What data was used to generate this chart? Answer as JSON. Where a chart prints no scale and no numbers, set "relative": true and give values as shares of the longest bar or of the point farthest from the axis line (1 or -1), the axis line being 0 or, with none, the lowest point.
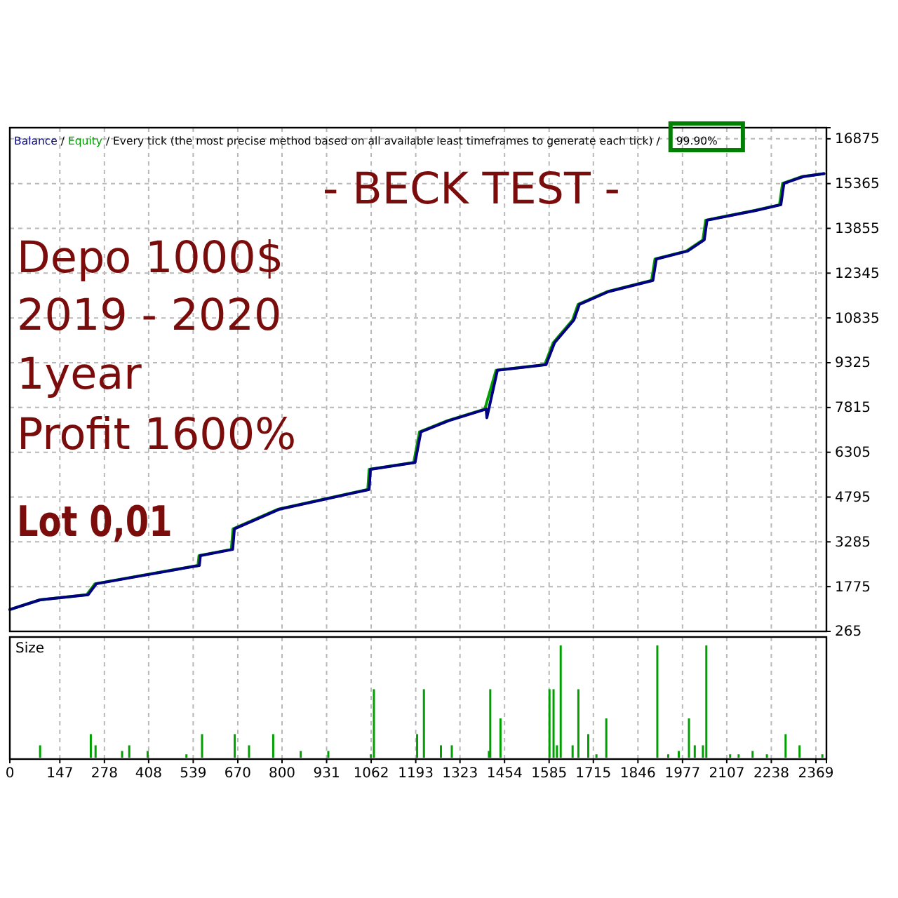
{
  "chart_data": [
    {
      "type": "line",
      "subtitle": "Every tick (the most precise method based on all available least timeframes to generate each tick)",
      "annotations": [
        "/",
        "/",
        "/",
        "99.90%",
        "- BECK TEST -",
        "Depo 1000$",
        "2019 - 2020",
        "1year",
        "Profit 1600%",
        "Lot 0,01"
      ],
      "xlim": [
        0,
        2400
      ],
      "ylim": [
        265,
        17250
      ],
      "xticks": [
        0,
        147,
        278,
        408,
        539,
        670,
        800,
        931,
        1062,
        1193,
        1323,
        1454,
        1585,
        1715,
        1846,
        1977,
        2107,
        2238,
        2369
      ],
      "yticks": [
        265,
        1775,
        3285,
        4795,
        6305,
        7815,
        9325,
        10835,
        12345,
        13855,
        15365,
        16875
      ],
      "tick_labels": "y",
      "grid": true,
      "legend": "top left",
      "series": [
        {
          "name": "Equity",
          "color": "#00a000",
          "x": [
            0,
            89,
            226,
            250,
            553,
            556,
            651,
            656,
            787,
            1052,
            1056,
            1187,
            1204,
            1286,
            1396,
            1429,
            1572,
            1597,
            1654,
            1670,
            1755,
            1886,
            1896,
            1988,
            2037,
            2045,
            2189,
            2262,
            2271,
            2328,
            2393
          ],
          "values": [
            1000,
            1330,
            1500,
            1870,
            2490,
            2820,
            3030,
            3720,
            4380,
            5050,
            5730,
            5960,
            6990,
            7370,
            7760,
            9070,
            9260,
            10000,
            10770,
            11290,
            11720,
            12100,
            12820,
            13090,
            13470,
            14130,
            14460,
            14650,
            15370,
            15600,
            15700
          ]
        },
        {
          "name": "Balance",
          "color": "#000080",
          "x": [
            0,
            89,
            230,
            254,
            557,
            560,
            655,
            660,
            791,
            1056,
            1060,
            1191,
            1208,
            1290,
            1400,
            1402,
            1433,
            1576,
            1601,
            1658,
            1674,
            1759,
            1890,
            1900,
            1992,
            2041,
            2049,
            2193,
            2266,
            2275,
            2332,
            2393
          ],
          "values": [
            1000,
            1330,
            1500,
            1870,
            2490,
            2820,
            3030,
            3720,
            4380,
            5050,
            5730,
            5960,
            6990,
            7370,
            7760,
            7470,
            9070,
            9260,
            10000,
            10770,
            11290,
            11720,
            12100,
            12820,
            13090,
            13470,
            14130,
            14460,
            14650,
            15370,
            15600,
            15700
          ]
        }
      ]
    },
    {
      "type": "bar",
      "title": "Size",
      "relative": true,
      "color": "#00a000",
      "xlim": [
        0,
        2400
      ],
      "xticks": [
        0,
        147,
        278,
        408,
        539,
        670,
        800,
        931,
        1062,
        1193,
        1323,
        1454,
        1585,
        1715,
        1846,
        1977,
        2107,
        2238,
        2369
      ],
      "grid": "x",
      "x": [
        89,
        238,
        252,
        330,
        351,
        405,
        519,
        565,
        661,
        703,
        774,
        855,
        936,
        1061,
        1070,
        1197,
        1217,
        1267,
        1299,
        1408,
        1412,
        1442,
        1586,
        1598,
        1608,
        1619,
        1654,
        1671,
        1700,
        1724,
        1753,
        1903,
        1935,
        1966,
        1996,
        2013,
        2037,
        2047,
        2117,
        2142,
        2183,
        2225,
        2280,
        2321,
        2388
      ],
      "values": [
        0.11,
        0.21,
        0.11,
        0.06,
        0.11,
        0.06,
        0.03,
        0.21,
        0.21,
        0.11,
        0.21,
        0.06,
        0.06,
        0.03,
        0.61,
        0.21,
        0.61,
        0.11,
        0.11,
        0.06,
        0.61,
        0.35,
        0.61,
        0.61,
        0.11,
        1,
        0.11,
        0.61,
        0.21,
        0.03,
        0.35,
        1,
        0.03,
        0.06,
        0.35,
        0.11,
        0.11,
        1,
        0.03,
        0.03,
        0.06,
        0.03,
        0.21,
        0.11,
        0.03
      ]
    }
  ]
}
